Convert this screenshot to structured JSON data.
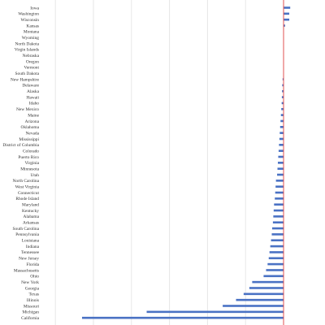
{
  "chart_data": {
    "type": "bar",
    "orientation": "horizontal",
    "title": "",
    "xlabel": "",
    "ylabel": "",
    "grid": true,
    "colors": {
      "bar": "#4a72c4",
      "zero_line": "#e05050",
      "grid": "#e6e6e6",
      "label": "#333333"
    },
    "xlim": [
      -190,
      10
    ],
    "categories": [
      "Iowa",
      "Washington",
      "Wisconsin",
      "Kansas",
      "Montana",
      "Wyoming",
      "North Dakota",
      "Virgin Islands",
      "Nebraska",
      "Oregon",
      "Vermont",
      "South Dakota",
      "New Hampshire",
      "Delaware",
      "Alaska",
      "Hawaii",
      "Idaho",
      "New Mexico",
      "Maine",
      "Arizona",
      "Oklahoma",
      "Nevada",
      "Mississippi",
      "District of Columbia",
      "Colorado",
      "Puerto Rico",
      "Virginia",
      "Minnesota",
      "Utah",
      "North Carolina",
      "West Virginia",
      "Connecticut",
      "Rhode Island",
      "Maryland",
      "Kentucky",
      "Alabama",
      "Arkansas",
      "South Carolina",
      "Pennsylvania",
      "Louisiana",
      "Indiana",
      "Tennessee",
      "New Jersey",
      "Florida",
      "Massachusetts",
      "Ohio",
      "New York",
      "Georgia",
      "Texas",
      "Illinois",
      "Missouri",
      "Michigan",
      "California"
    ],
    "values": [
      3.5,
      3.0,
      3.0,
      0.8,
      0,
      0,
      0,
      0,
      0,
      0,
      0,
      0,
      -0.5,
      -0.7,
      -0.8,
      -0.9,
      -1.0,
      -1.2,
      -1.4,
      -1.6,
      -1.8,
      -2.0,
      -2.2,
      -2.4,
      -2.6,
      -2.8,
      -3.0,
      -3.2,
      -3.4,
      -4.0,
      -4.2,
      -4.4,
      -4.6,
      -5.0,
      -5.2,
      -5.4,
      -5.6,
      -6.0,
      -6.2,
      -6.6,
      -7.0,
      -7.4,
      -7.8,
      -8.4,
      -9.2,
      -10.5,
      -16.5,
      -18.0,
      -21.0,
      -25.0,
      -32.0,
      -72.0,
      -106.0
    ]
  }
}
